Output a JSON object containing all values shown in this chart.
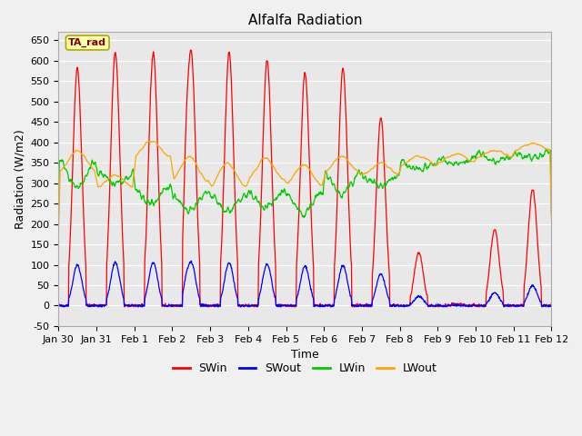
{
  "title": "Alfalfa Radiation",
  "xlabel": "Time",
  "ylabel": "Radiation (W/m2)",
  "ylim": [
    -50,
    670
  ],
  "xlim_start": 0,
  "xlim_end": 13,
  "fig_facecolor": "#f0f0f0",
  "plot_facecolor": "#e8e8e8",
  "legend_entries": [
    "SWin",
    "SWout",
    "LWin",
    "LWout"
  ],
  "line_colors": [
    "#ff0000",
    "#0000ff",
    "#00cc00",
    "#ffa500"
  ],
  "xtick_labels": [
    "Jan 30",
    "Jan 31",
    "Feb 1",
    "Feb 2",
    "Feb 3",
    "Feb 4",
    "Feb 5",
    "Feb 6",
    "Feb 7",
    "Feb 8",
    "Feb 9",
    "Feb 10",
    "Feb 11",
    "Feb 12"
  ],
  "ytick_values": [
    -50,
    0,
    50,
    100,
    150,
    200,
    250,
    300,
    350,
    400,
    450,
    500,
    550,
    600,
    650
  ],
  "annotation_text": "TA_rad",
  "title_fontsize": 11,
  "axis_fontsize": 9,
  "tick_fontsize": 8
}
